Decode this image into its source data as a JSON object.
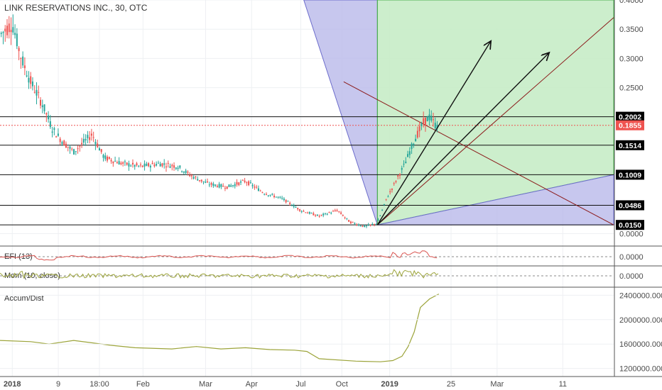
{
  "chart_data": {
    "type": "candlestick",
    "title": "LINK RESERVATIONS INC., 30, OTC",
    "price_axis": {
      "ylim": [
        -0.02,
        0.4
      ],
      "ticks": [
        "0.4000",
        "0.3500",
        "0.3000",
        "0.2500",
        "0.0000"
      ],
      "tick_values": [
        0.4,
        0.35,
        0.3,
        0.25,
        0.0
      ]
    },
    "x_axis": {
      "ticks": [
        "2018",
        "9",
        "18:00",
        "Feb",
        "Mar",
        "Apr",
        "Jul",
        "Oct",
        "2019",
        "25",
        "Mar",
        "11"
      ],
      "bold_ticks": [
        "2018",
        "2019"
      ]
    },
    "price_levels": [
      {
        "value": 0.2002,
        "label": "0.2002",
        "style": "dark"
      },
      {
        "value": 0.1855,
        "label": "0.1855",
        "style": "red"
      },
      {
        "value": 0.1514,
        "label": "0.1514",
        "style": "dark"
      },
      {
        "value": 0.1009,
        "label": "0.1009",
        "style": "dark"
      },
      {
        "value": 0.0486,
        "label": "0.0486",
        "style": "dark"
      },
      {
        "value": 0.015,
        "label": "0.0150",
        "style": "dark"
      }
    ],
    "price_path": [
      [
        0.0,
        0.34
      ],
      [
        0.02,
        0.36
      ],
      [
        0.035,
        0.3
      ],
      [
        0.05,
        0.26
      ],
      [
        0.07,
        0.22
      ],
      [
        0.085,
        0.18
      ],
      [
        0.1,
        0.16
      ],
      [
        0.12,
        0.14
      ],
      [
        0.15,
        0.17
      ],
      [
        0.17,
        0.13
      ],
      [
        0.2,
        0.12
      ],
      [
        0.23,
        0.115
      ],
      [
        0.26,
        0.12
      ],
      [
        0.29,
        0.115
      ],
      [
        0.31,
        0.1
      ],
      [
        0.34,
        0.085
      ],
      [
        0.37,
        0.08
      ],
      [
        0.4,
        0.09
      ],
      [
        0.43,
        0.07
      ],
      [
        0.46,
        0.06
      ],
      [
        0.49,
        0.04
      ],
      [
        0.52,
        0.03
      ],
      [
        0.55,
        0.04
      ],
      [
        0.57,
        0.02
      ],
      [
        0.595,
        0.012
      ],
      [
        0.615,
        0.018
      ],
      [
        0.63,
        0.06
      ],
      [
        0.645,
        0.09
      ],
      [
        0.66,
        0.12
      ],
      [
        0.675,
        0.16
      ],
      [
        0.69,
        0.19
      ],
      [
        0.7,
        0.2
      ],
      [
        0.71,
        0.185
      ],
      [
        0.715,
        0.1855
      ]
    ],
    "fan_origin": [
      0.615,
      0.015
    ],
    "fan_arrows": [
      [
        0.8,
        0.33
      ],
      [
        0.895,
        0.31
      ]
    ],
    "colors": {
      "up": "#26a69a",
      "down": "#ef5350",
      "blue_zone": "#b9b9ea",
      "green_zone": "#c6ecc6",
      "diag": "#8b1a1a",
      "adl": "#9ca43a",
      "mom": "#9ca43a",
      "efi": "#d9534f"
    },
    "efi": {
      "title": "EFI (13)",
      "value_label": "0.0000"
    },
    "mom": {
      "title": "Mom (10, close)",
      "value_label": "0.0000"
    },
    "adl": {
      "title": "Accum/Dist",
      "ticks": [
        "2400000.0000",
        "2000000.0000",
        "1600000.0000",
        "1200000.0000"
      ],
      "tick_values": [
        2400000,
        2000000,
        1600000,
        1200000
      ],
      "ylim": [
        1080000,
        2520000
      ],
      "path": [
        [
          0.0,
          1660000
        ],
        [
          0.05,
          1640000
        ],
        [
          0.08,
          1600000
        ],
        [
          0.12,
          1660000
        ],
        [
          0.18,
          1580000
        ],
        [
          0.22,
          1540000
        ],
        [
          0.28,
          1520000
        ],
        [
          0.32,
          1560000
        ],
        [
          0.36,
          1520000
        ],
        [
          0.4,
          1540000
        ],
        [
          0.44,
          1510000
        ],
        [
          0.48,
          1500000
        ],
        [
          0.5,
          1480000
        ],
        [
          0.52,
          1360000
        ],
        [
          0.58,
          1320000
        ],
        [
          0.62,
          1310000
        ],
        [
          0.64,
          1330000
        ],
        [
          0.655,
          1400000
        ],
        [
          0.665,
          1560000
        ],
        [
          0.675,
          1800000
        ],
        [
          0.685,
          2200000
        ],
        [
          0.7,
          2340000
        ],
        [
          0.715,
          2420000
        ]
      ]
    }
  }
}
